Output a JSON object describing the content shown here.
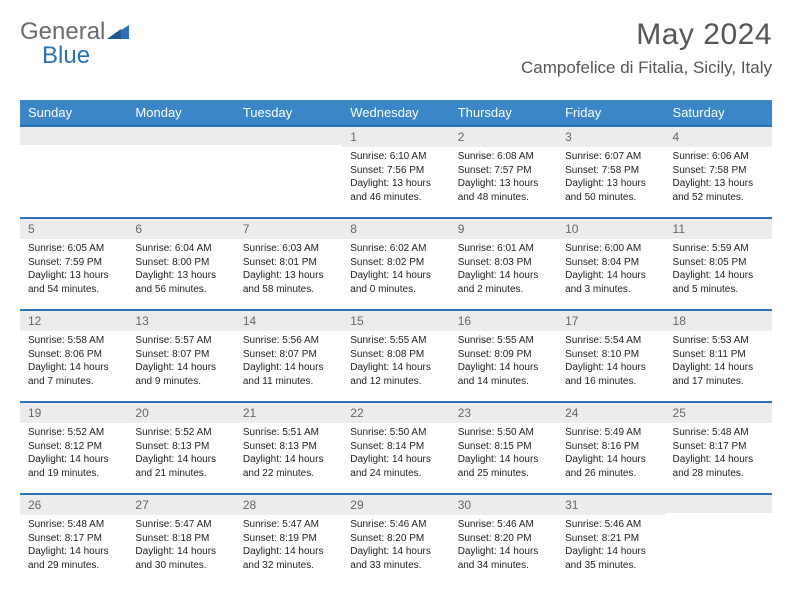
{
  "brand": {
    "part1": "General",
    "part2": "Blue"
  },
  "title": "May 2024",
  "location": "Campofelice di Fitalia, Sicily, Italy",
  "colors": {
    "header_bg": "#3b86c6",
    "week_border": "#2a72b5",
    "daynum_bg": "#ececec",
    "text_muted": "#666666",
    "title_color": "#555555"
  },
  "dow": [
    "Sunday",
    "Monday",
    "Tuesday",
    "Wednesday",
    "Thursday",
    "Friday",
    "Saturday"
  ],
  "weeks": [
    [
      null,
      null,
      null,
      {
        "n": "1",
        "sr": "6:10 AM",
        "ss": "7:56 PM",
        "dl": "13 hours and 46 minutes."
      },
      {
        "n": "2",
        "sr": "6:08 AM",
        "ss": "7:57 PM",
        "dl": "13 hours and 48 minutes."
      },
      {
        "n": "3",
        "sr": "6:07 AM",
        "ss": "7:58 PM",
        "dl": "13 hours and 50 minutes."
      },
      {
        "n": "4",
        "sr": "6:06 AM",
        "ss": "7:58 PM",
        "dl": "13 hours and 52 minutes."
      }
    ],
    [
      {
        "n": "5",
        "sr": "6:05 AM",
        "ss": "7:59 PM",
        "dl": "13 hours and 54 minutes."
      },
      {
        "n": "6",
        "sr": "6:04 AM",
        "ss": "8:00 PM",
        "dl": "13 hours and 56 minutes."
      },
      {
        "n": "7",
        "sr": "6:03 AM",
        "ss": "8:01 PM",
        "dl": "13 hours and 58 minutes."
      },
      {
        "n": "8",
        "sr": "6:02 AM",
        "ss": "8:02 PM",
        "dl": "14 hours and 0 minutes."
      },
      {
        "n": "9",
        "sr": "6:01 AM",
        "ss": "8:03 PM",
        "dl": "14 hours and 2 minutes."
      },
      {
        "n": "10",
        "sr": "6:00 AM",
        "ss": "8:04 PM",
        "dl": "14 hours and 3 minutes."
      },
      {
        "n": "11",
        "sr": "5:59 AM",
        "ss": "8:05 PM",
        "dl": "14 hours and 5 minutes."
      }
    ],
    [
      {
        "n": "12",
        "sr": "5:58 AM",
        "ss": "8:06 PM",
        "dl": "14 hours and 7 minutes."
      },
      {
        "n": "13",
        "sr": "5:57 AM",
        "ss": "8:07 PM",
        "dl": "14 hours and 9 minutes."
      },
      {
        "n": "14",
        "sr": "5:56 AM",
        "ss": "8:07 PM",
        "dl": "14 hours and 11 minutes."
      },
      {
        "n": "15",
        "sr": "5:55 AM",
        "ss": "8:08 PM",
        "dl": "14 hours and 12 minutes."
      },
      {
        "n": "16",
        "sr": "5:55 AM",
        "ss": "8:09 PM",
        "dl": "14 hours and 14 minutes."
      },
      {
        "n": "17",
        "sr": "5:54 AM",
        "ss": "8:10 PM",
        "dl": "14 hours and 16 minutes."
      },
      {
        "n": "18",
        "sr": "5:53 AM",
        "ss": "8:11 PM",
        "dl": "14 hours and 17 minutes."
      }
    ],
    [
      {
        "n": "19",
        "sr": "5:52 AM",
        "ss": "8:12 PM",
        "dl": "14 hours and 19 minutes."
      },
      {
        "n": "20",
        "sr": "5:52 AM",
        "ss": "8:13 PM",
        "dl": "14 hours and 21 minutes."
      },
      {
        "n": "21",
        "sr": "5:51 AM",
        "ss": "8:13 PM",
        "dl": "14 hours and 22 minutes."
      },
      {
        "n": "22",
        "sr": "5:50 AM",
        "ss": "8:14 PM",
        "dl": "14 hours and 24 minutes."
      },
      {
        "n": "23",
        "sr": "5:50 AM",
        "ss": "8:15 PM",
        "dl": "14 hours and 25 minutes."
      },
      {
        "n": "24",
        "sr": "5:49 AM",
        "ss": "8:16 PM",
        "dl": "14 hours and 26 minutes."
      },
      {
        "n": "25",
        "sr": "5:48 AM",
        "ss": "8:17 PM",
        "dl": "14 hours and 28 minutes."
      }
    ],
    [
      {
        "n": "26",
        "sr": "5:48 AM",
        "ss": "8:17 PM",
        "dl": "14 hours and 29 minutes."
      },
      {
        "n": "27",
        "sr": "5:47 AM",
        "ss": "8:18 PM",
        "dl": "14 hours and 30 minutes."
      },
      {
        "n": "28",
        "sr": "5:47 AM",
        "ss": "8:19 PM",
        "dl": "14 hours and 32 minutes."
      },
      {
        "n": "29",
        "sr": "5:46 AM",
        "ss": "8:20 PM",
        "dl": "14 hours and 33 minutes."
      },
      {
        "n": "30",
        "sr": "5:46 AM",
        "ss": "8:20 PM",
        "dl": "14 hours and 34 minutes."
      },
      {
        "n": "31",
        "sr": "5:46 AM",
        "ss": "8:21 PM",
        "dl": "14 hours and 35 minutes."
      },
      null
    ]
  ],
  "labels": {
    "sunrise": "Sunrise:",
    "sunset": "Sunset:",
    "daylight": "Daylight:"
  }
}
